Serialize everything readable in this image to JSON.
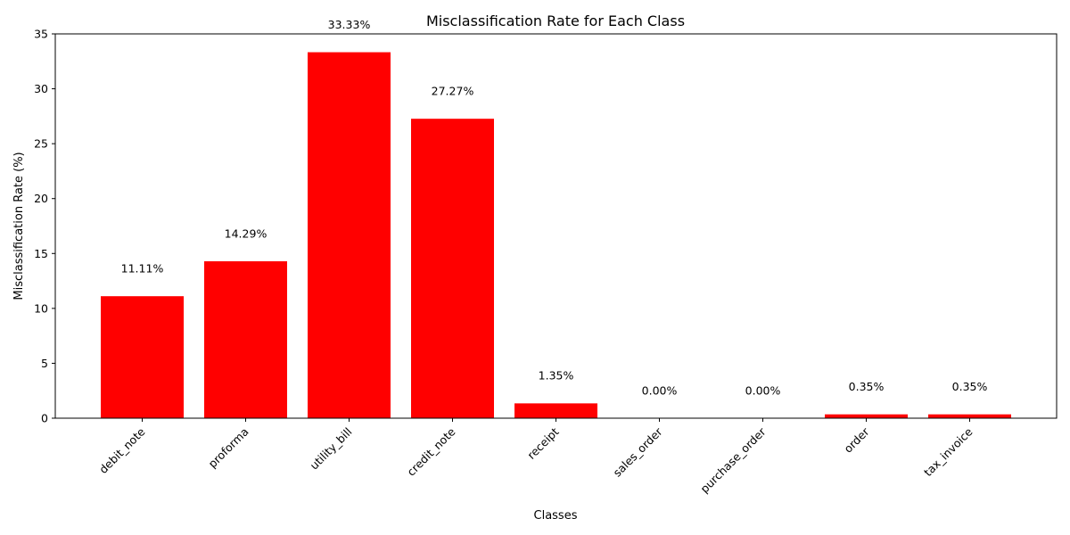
{
  "chart_data": {
    "type": "bar",
    "title": "Misclassification Rate for Each Class",
    "xlabel": "Classes",
    "ylabel": "Misclassification Rate (%)",
    "categories": [
      "debit_note",
      "proforma",
      "utility_bill",
      "credit_note",
      "receipt",
      "sales_order",
      "purchase_order",
      "order",
      "tax_invoice"
    ],
    "values": [
      11.11,
      14.29,
      33.33,
      27.27,
      1.35,
      0.0,
      0.0,
      0.35,
      0.35
    ],
    "data_labels": [
      "11.11%",
      "14.29%",
      "33.33%",
      "27.27%",
      "1.35%",
      "0.00%",
      "0.00%",
      "0.35%",
      "0.35%"
    ],
    "ylim": [
      0,
      35
    ],
    "yticks": [
      0,
      5,
      10,
      15,
      20,
      25,
      30,
      35
    ],
    "grid": false,
    "legend": "none",
    "bar_color": "#ff0000"
  }
}
